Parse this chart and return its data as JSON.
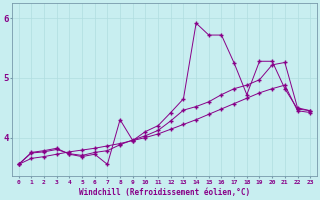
{
  "xlabel": "Windchill (Refroidissement éolien,°C)",
  "bg_color": "#c8eef0",
  "grid_color": "#b0dde0",
  "line_color": "#880088",
  "xlim": [
    -0.5,
    23.5
  ],
  "ylim": [
    3.35,
    6.25
  ],
  "xticks": [
    0,
    1,
    2,
    3,
    4,
    5,
    6,
    7,
    8,
    9,
    10,
    11,
    12,
    13,
    14,
    15,
    16,
    17,
    18,
    19,
    20,
    21,
    22,
    23
  ],
  "yticks": [
    4,
    5,
    6
  ],
  "line1_x": [
    0,
    1,
    2,
    3,
    4,
    5,
    6,
    7,
    8,
    9,
    10,
    11,
    12,
    13,
    14,
    15,
    16,
    17,
    18,
    19,
    20,
    21,
    22,
    23
  ],
  "line1_y": [
    3.55,
    3.75,
    3.78,
    3.82,
    3.72,
    3.68,
    3.72,
    3.55,
    4.3,
    3.95,
    4.1,
    4.2,
    4.42,
    4.65,
    5.92,
    5.72,
    5.72,
    5.25,
    4.72,
    5.28,
    5.28,
    4.82,
    4.48,
    4.45
  ],
  "line2_x": [
    0,
    1,
    2,
    3,
    4,
    5,
    6,
    7,
    8,
    9,
    10,
    11,
    12,
    13,
    14,
    15,
    16,
    17,
    18,
    19,
    20,
    21,
    22,
    23
  ],
  "line2_y": [
    3.55,
    3.74,
    3.76,
    3.8,
    3.73,
    3.7,
    3.75,
    3.78,
    3.88,
    3.96,
    4.03,
    4.12,
    4.28,
    4.46,
    4.52,
    4.6,
    4.72,
    4.82,
    4.88,
    4.97,
    5.22,
    5.26,
    4.5,
    4.45
  ],
  "line3_x": [
    0,
    1,
    2,
    3,
    4,
    5,
    6,
    7,
    8,
    9,
    10,
    11,
    12,
    13,
    14,
    15,
    16,
    17,
    18,
    19,
    20,
    21,
    22,
    23
  ],
  "line3_y": [
    3.55,
    3.65,
    3.68,
    3.72,
    3.76,
    3.79,
    3.82,
    3.86,
    3.9,
    3.95,
    4.0,
    4.06,
    4.14,
    4.22,
    4.3,
    4.39,
    4.48,
    4.57,
    4.66,
    4.75,
    4.82,
    4.88,
    4.45,
    4.42
  ]
}
